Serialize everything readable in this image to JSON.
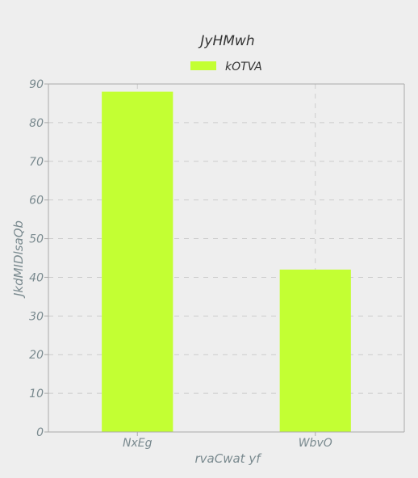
{
  "chart_data": {
    "type": "bar",
    "title": "JyHMwh",
    "xlabel": "rvaCwat  yf",
    "ylabel": "JkdMIDlsaQb",
    "categories": [
      "NxEg",
      "WbvO"
    ],
    "series": [
      {
        "name": "kOTVA",
        "values": [
          88,
          42
        ],
        "color": "#c3ff33"
      }
    ],
    "ylim": [
      0,
      90
    ],
    "yticks": [
      0,
      10,
      20,
      30,
      40,
      50,
      60,
      70,
      80,
      90
    ],
    "grid": true,
    "legend_position": "top-center"
  },
  "colors": {
    "background": "#eeeeee",
    "plot_background": "#eeeeee",
    "axis": "#aaaaaa",
    "grid": "#cccccc",
    "text": "#7a8a8f",
    "title_text": "#333333"
  }
}
